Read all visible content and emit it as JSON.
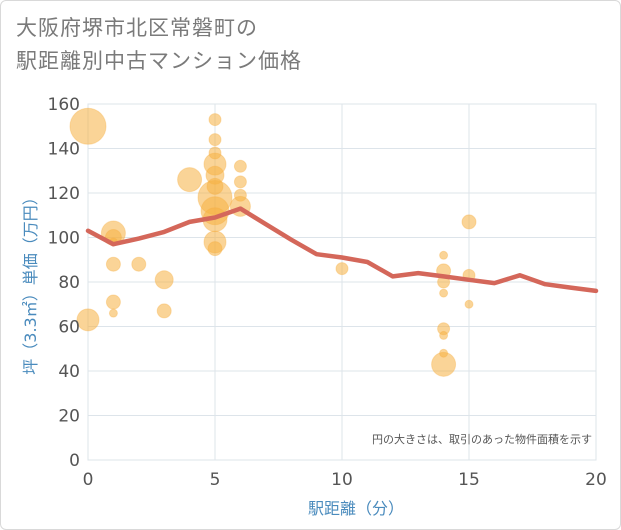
{
  "title_line1": "大阪府堺市北区常磐町の",
  "title_line2": "駅距離別中古マンション価格",
  "chart_data": {
    "type": "scatter",
    "title": "大阪府堺市北区常磐町の駅距離別中古マンション価格",
    "xlabel": "駅距離（分）",
    "ylabel": "坪（3.3㎡）単価（万円）",
    "xlim": [
      0,
      20
    ],
    "ylim": [
      0,
      160
    ],
    "xticks": [
      "0",
      "5",
      "10",
      "15",
      "20"
    ],
    "yticks": [
      "0",
      "20",
      "40",
      "60",
      "80",
      "100",
      "120",
      "140",
      "160"
    ],
    "note": "円の大きさは、取引のあった物件面積を示す",
    "colors": {
      "bubble": "#f5b041",
      "line": "#d4675a",
      "grid": "#dde4ea",
      "axis_text": "#4a8bbd"
    },
    "bubbles": [
      {
        "x": 0,
        "y": 150,
        "s": 18
      },
      {
        "x": 0,
        "y": 63,
        "s": 11
      },
      {
        "x": 1,
        "y": 102,
        "s": 12
      },
      {
        "x": 1,
        "y": 100,
        "s": 8
      },
      {
        "x": 1,
        "y": 98,
        "s": 4
      },
      {
        "x": 1,
        "y": 88,
        "s": 7
      },
      {
        "x": 1,
        "y": 71,
        "s": 7
      },
      {
        "x": 1,
        "y": 66,
        "s": 4
      },
      {
        "x": 2,
        "y": 88,
        "s": 7
      },
      {
        "x": 3,
        "y": 81,
        "s": 9
      },
      {
        "x": 3,
        "y": 67,
        "s": 7
      },
      {
        "x": 4,
        "y": 126,
        "s": 12
      },
      {
        "x": 5,
        "y": 153,
        "s": 6
      },
      {
        "x": 5,
        "y": 144,
        "s": 6
      },
      {
        "x": 5,
        "y": 138,
        "s": 6
      },
      {
        "x": 5,
        "y": 133,
        "s": 11
      },
      {
        "x": 5,
        "y": 128,
        "s": 9
      },
      {
        "x": 5,
        "y": 123,
        "s": 8
      },
      {
        "x": 5,
        "y": 118,
        "s": 17
      },
      {
        "x": 5,
        "y": 112,
        "s": 14
      },
      {
        "x": 5,
        "y": 108,
        "s": 12
      },
      {
        "x": 5,
        "y": 98,
        "s": 11
      },
      {
        "x": 5,
        "y": 95,
        "s": 7
      },
      {
        "x": 6,
        "y": 132,
        "s": 6
      },
      {
        "x": 6,
        "y": 125,
        "s": 6
      },
      {
        "x": 6,
        "y": 119,
        "s": 6
      },
      {
        "x": 6,
        "y": 114,
        "s": 10
      },
      {
        "x": 10,
        "y": 86,
        "s": 6
      },
      {
        "x": 14,
        "y": 92,
        "s": 4
      },
      {
        "x": 14,
        "y": 85,
        "s": 7
      },
      {
        "x": 14,
        "y": 80,
        "s": 6
      },
      {
        "x": 14,
        "y": 75,
        "s": 4
      },
      {
        "x": 14,
        "y": 59,
        "s": 6
      },
      {
        "x": 14,
        "y": 56,
        "s": 4
      },
      {
        "x": 14,
        "y": 48,
        "s": 4
      },
      {
        "x": 14,
        "y": 43,
        "s": 12
      },
      {
        "x": 15,
        "y": 107,
        "s": 7
      },
      {
        "x": 15,
        "y": 83,
        "s": 6
      },
      {
        "x": 15,
        "y": 70,
        "s": 4
      }
    ],
    "series": [
      {
        "x": [
          0,
          1,
          2,
          3,
          4,
          5,
          6,
          7,
          8,
          9,
          10,
          11,
          12,
          13,
          14,
          15,
          16,
          17,
          18,
          19,
          20
        ],
        "values": [
          103,
          97,
          99.5,
          102.5,
          107,
          109,
          113,
          106,
          99,
          92.5,
          91,
          89,
          82.5,
          84,
          82.5,
          81,
          79.5,
          83,
          79,
          77.5,
          76
        ]
      }
    ]
  }
}
